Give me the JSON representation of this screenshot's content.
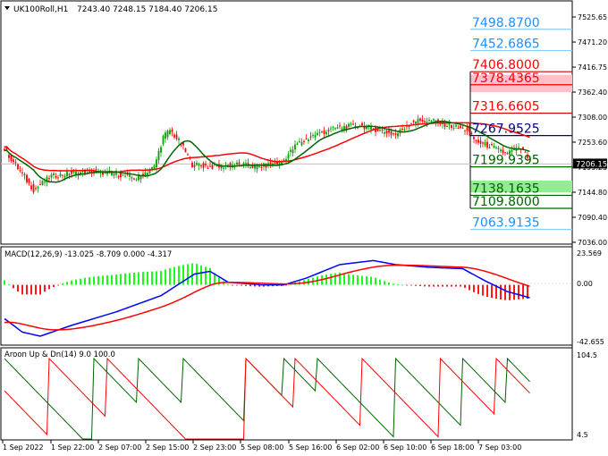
{
  "main_pane": {
    "symbol_label": "UK100Roll,H1",
    "ohlc_label": "7243.40 7248.15 7184.40 7206.15",
    "current_price_tag": "7206.15",
    "axis_ticks": [
      "7525.65",
      "7471.20",
      "7416.75",
      "7362.40",
      "7308.00",
      "7253.60",
      "7199.25",
      "7144.80",
      "7090.40",
      "7036.00"
    ],
    "levels": [
      {
        "label": "7498.8700",
        "price": 7498.87,
        "color": "#1e90ff",
        "line": "#87cefa"
      },
      {
        "label": "7452.6865",
        "price": 7452.6865,
        "color": "#1e90ff",
        "line": "#87cefa"
      },
      {
        "label": "7406.8000",
        "price": 7406.8,
        "color": "#ff0000",
        "line": "#cc0000"
      },
      {
        "label": "7378.4365",
        "price": 7378.4365,
        "color": "#ff0000",
        "line": "#ff0000"
      },
      {
        "label": "7316.6605",
        "price": 7316.6605,
        "color": "#ff0000",
        "line": "#cc0000"
      },
      {
        "label": "7267.9525",
        "price": 7267.9525,
        "color": "#00008b",
        "line": "#00008b"
      },
      {
        "label": "7199.9395",
        "price": 7199.9395,
        "color": "#006400",
        "line": "#006400"
      },
      {
        "label": "7138.1635",
        "price": 7138.1635,
        "color": "#006400",
        "line": "#006400"
      },
      {
        "label": "7109.8000",
        "price": 7109.8,
        "color": "#006400",
        "line": "#006400"
      },
      {
        "label": "7063.9135",
        "price": 7063.9135,
        "color": "#1e90ff",
        "line": "#87cefa"
      }
    ],
    "resistance_zone": [
      7362.4,
      7400.0
    ],
    "support_zone": [
      7144.8,
      7170.0
    ],
    "colors": {
      "bull": "#00a000",
      "bear": "#ff0000",
      "ma_fast": "#006400",
      "ma_slow": "#ff0000"
    }
  },
  "macd_pane": {
    "label": "MACD(12,26,9) -13.025 -8.709 0.000 -4.317",
    "axis_ticks": [
      "23.569",
      "0.00",
      "-42.655"
    ]
  },
  "aroon_pane": {
    "label": "Aroon Up & Dn(14) 9.0 100.0",
    "axis_ticks": [
      "104.5",
      "4.5"
    ]
  },
  "time_axis": [
    "1 Sep 2022",
    "1 Sep 22:00",
    "2 Sep 07:00",
    "2 Sep 15:00",
    "2 Sep 23:00",
    "5 Sep 08:00",
    "5 Sep 16:00",
    "6 Sep 02:00",
    "6 Sep 10:00",
    "6 Sep 18:00",
    "7 Sep 03:00"
  ]
}
